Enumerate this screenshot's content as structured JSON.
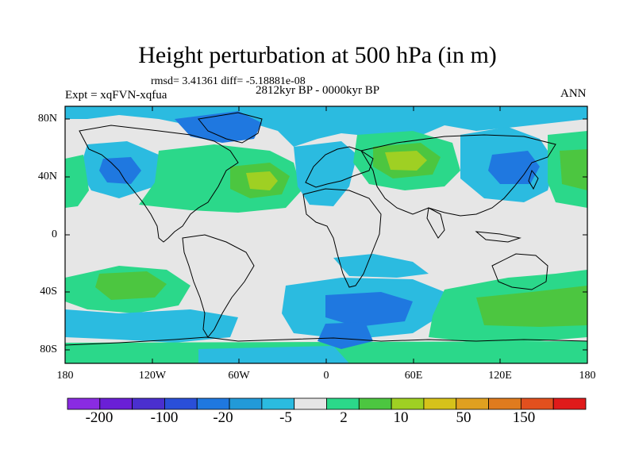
{
  "title": "Height perturbation at 500 hPa (in m)",
  "stats_line": "rmsd= 3.41361 diff= -5.18881e-08",
  "period": "2812kyr BP - 0000kyr BP",
  "experiment": "Expt = xqFVN-xqfua",
  "season": "ANN",
  "x_ticks": [
    "180",
    "120W",
    "60W",
    "0",
    "60E",
    "120E",
    "180"
  ],
  "y_ticks": [
    "80N",
    "40N",
    "0",
    "40S",
    "80S"
  ],
  "colorbar": {
    "labels": [
      "-200",
      "-100",
      "-20",
      "-5",
      "2",
      "10",
      "50",
      "150"
    ],
    "colors": [
      "#8a2be2",
      "#6a1fd6",
      "#4a2fcf",
      "#2a4fd8",
      "#1f78e0",
      "#229ad8",
      "#2bbbe0",
      "#e6e6e6",
      "#2bd88a",
      "#4cc640",
      "#9fd023",
      "#d6c21a",
      "#e0a020",
      "#e07b1e",
      "#e2501e",
      "#e01a1a"
    ]
  },
  "palette": {
    "neutral": "#e6e6e6",
    "neg_light": "#2bbbe0",
    "neg_mid": "#1f78e0",
    "neg_strong": "#2a4fd8",
    "pos_light": "#2bd88a",
    "pos_mid": "#4cc640",
    "pos_strong": "#9fd023"
  }
}
